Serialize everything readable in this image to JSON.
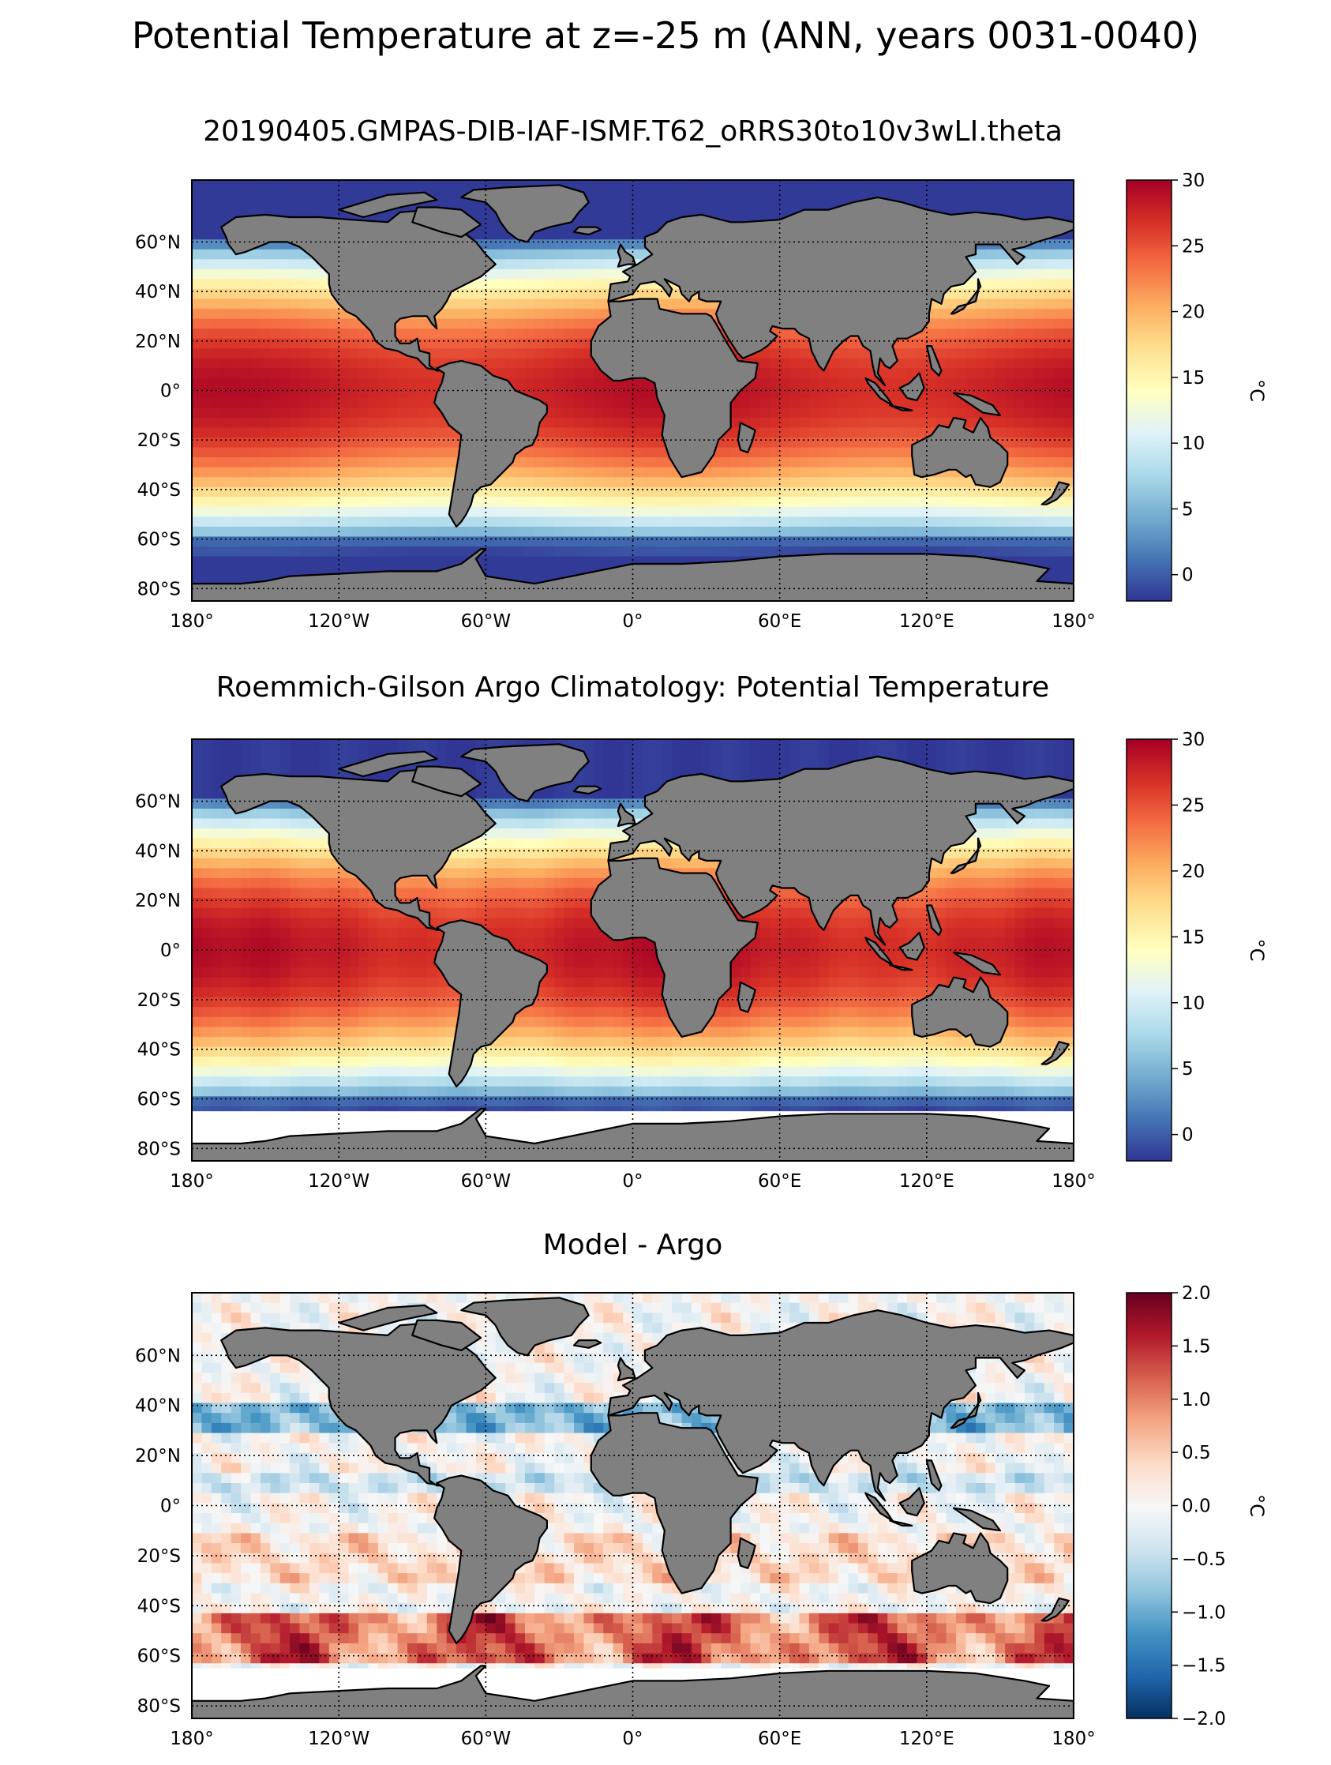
{
  "figure": {
    "title": "Potential Temperature at z=-25 m (ANN, years 0031-0040)"
  },
  "chart_data": [
    {
      "type": "heatmap",
      "title": "20190405.GMPAS-DIB-IAF-ISMF.T62_oRRS30to10v3wLI.theta",
      "xlabel": "",
      "ylabel": "",
      "xlim": [
        -180,
        180
      ],
      "ylim": [
        -85,
        85
      ],
      "x_ticks": [
        -180,
        -120,
        -60,
        0,
        60,
        120,
        180
      ],
      "x_tick_labels": [
        "180°",
        "120°W",
        "60°W",
        "0°",
        "60°E",
        "120°E",
        "180°"
      ],
      "y_ticks": [
        60,
        40,
        20,
        0,
        -20,
        -40,
        -60,
        -80
      ],
      "y_tick_labels": [
        "60°N",
        "40°N",
        "20°N",
        "0°",
        "20°S",
        "40°S",
        "60°S",
        "80°S"
      ],
      "grid": true,
      "colorbar": {
        "label": "°C",
        "range": [
          -2,
          30
        ],
        "ticks": [
          0,
          5,
          10,
          15,
          20,
          25,
          30
        ],
        "tick_labels": [
          "0",
          "5",
          "10",
          "15",
          "20",
          "25",
          "30"
        ]
      },
      "colormap": "RdYlBu_r",
      "land_color": "#808080",
      "ocean_south_limit": -78,
      "description": "Zonally banded field: ~28°C in tropics, ~15–20°C at 40°, ~0°C near Antarctica"
    },
    {
      "type": "heatmap",
      "title": "Roemmich-Gilson Argo Climatology: Potential Temperature",
      "xlabel": "",
      "ylabel": "",
      "xlim": [
        -180,
        180
      ],
      "ylim": [
        -85,
        85
      ],
      "x_ticks": [
        -180,
        -120,
        -60,
        0,
        60,
        120,
        180
      ],
      "x_tick_labels": [
        "180°",
        "120°W",
        "60°W",
        "0°",
        "60°E",
        "120°E",
        "180°"
      ],
      "y_ticks": [
        60,
        40,
        20,
        0,
        -20,
        -40,
        -60,
        -80
      ],
      "y_tick_labels": [
        "60°N",
        "40°N",
        "20°N",
        "0°",
        "20°S",
        "40°S",
        "60°S",
        "80°S"
      ],
      "grid": true,
      "colorbar": {
        "label": "°C",
        "range": [
          -2,
          30
        ],
        "ticks": [
          0,
          5,
          10,
          15,
          20,
          25,
          30
        ],
        "tick_labels": [
          "0",
          "5",
          "10",
          "15",
          "20",
          "25",
          "30"
        ]
      },
      "colormap": "RdYlBu_r",
      "land_color": "#808080",
      "ocean_south_limit": -65,
      "description": "Observed climatology; no data south of ~65°S and in marginal seas"
    },
    {
      "type": "heatmap",
      "title": "Model - Argo",
      "xlabel": "",
      "ylabel": "",
      "xlim": [
        -180,
        180
      ],
      "ylim": [
        -85,
        85
      ],
      "x_ticks": [
        -180,
        -120,
        -60,
        0,
        60,
        120,
        180
      ],
      "x_tick_labels": [
        "180°",
        "120°W",
        "60°W",
        "0°",
        "60°E",
        "120°E",
        "180°"
      ],
      "y_ticks": [
        60,
        40,
        20,
        0,
        -20,
        -40,
        -60,
        -80
      ],
      "y_tick_labels": [
        "60°N",
        "40°N",
        "20°N",
        "0°",
        "20°S",
        "40°S",
        "60°S",
        "80°S"
      ],
      "grid": true,
      "colorbar": {
        "label": "°C",
        "range": [
          -2.0,
          2.0
        ],
        "ticks": [
          2.0,
          1.5,
          1.0,
          0.5,
          0.0,
          -0.5,
          -1.0,
          -1.5,
          -2.0
        ],
        "tick_labels": [
          "2.0",
          "1.5",
          "1.0",
          "0.5",
          "0.0",
          "−0.5",
          "−1.0",
          "−1.5",
          "−2.0"
        ]
      },
      "colormap": "RdBu_r",
      "land_color": "#808080",
      "ocean_south_limit": -65,
      "description": "Bias field: cold (blue) ~-1°C bands near 35°N and equatorial Atlantic, warm (red) ~+1.5°C in Southern Ocean 45–65°S"
    }
  ]
}
